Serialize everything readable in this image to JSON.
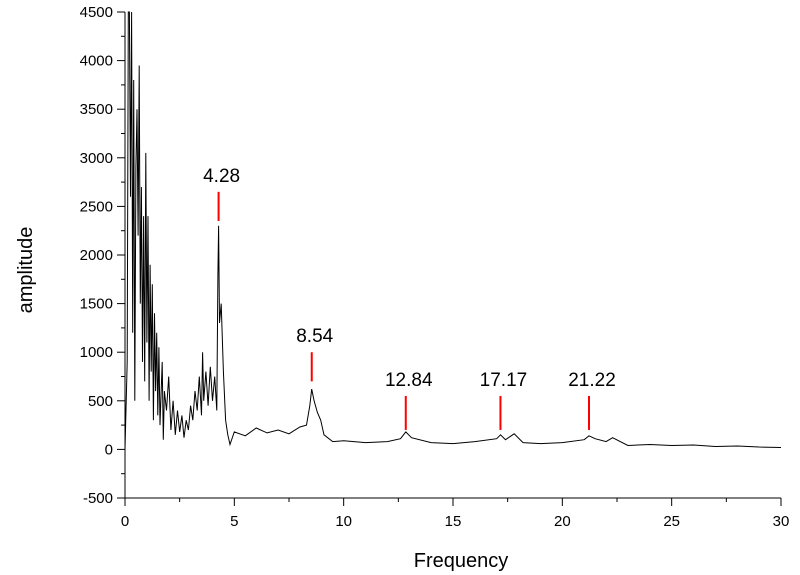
{
  "chart_data": {
    "type": "line",
    "xlabel": "Frequency",
    "ylabel": "amplitude",
    "xlim": [
      0,
      30
    ],
    "ylim": [
      -500,
      4500
    ],
    "x_ticks": [
      0,
      5,
      10,
      15,
      20,
      25,
      30
    ],
    "y_ticks": [
      -500,
      0,
      500,
      1000,
      1500,
      2000,
      2500,
      3000,
      3500,
      4000,
      4500
    ],
    "grid": false,
    "line_color": "#000000",
    "marker_color": "#ff0000",
    "series": [
      {
        "points": [
          [
            0.0,
            0
          ],
          [
            0.1,
            900
          ],
          [
            0.15,
            4500
          ],
          [
            0.2,
            4500
          ],
          [
            0.25,
            2600
          ],
          [
            0.3,
            4500
          ],
          [
            0.35,
            1200
          ],
          [
            0.4,
            3800
          ],
          [
            0.45,
            500
          ],
          [
            0.5,
            2900
          ],
          [
            0.55,
            3500
          ],
          [
            0.6,
            2200
          ],
          [
            0.65,
            3950
          ],
          [
            0.7,
            1500
          ],
          [
            0.75,
            2700
          ],
          [
            0.8,
            900
          ],
          [
            0.85,
            2400
          ],
          [
            0.9,
            700
          ],
          [
            0.95,
            3050
          ],
          [
            1.0,
            1100
          ],
          [
            1.05,
            2400
          ],
          [
            1.1,
            500
          ],
          [
            1.15,
            1900
          ],
          [
            1.2,
            800
          ],
          [
            1.25,
            1700
          ],
          [
            1.3,
            300
          ],
          [
            1.35,
            1400
          ],
          [
            1.4,
            600
          ],
          [
            1.45,
            1200
          ],
          [
            1.5,
            350
          ],
          [
            1.55,
            1050
          ],
          [
            1.6,
            250
          ],
          [
            1.7,
            900
          ],
          [
            1.75,
            100
          ],
          [
            1.8,
            600
          ],
          [
            1.9,
            400
          ],
          [
            2.0,
            750
          ],
          [
            2.1,
            200
          ],
          [
            2.2,
            500
          ],
          [
            2.3,
            150
          ],
          [
            2.4,
            400
          ],
          [
            2.5,
            180
          ],
          [
            2.6,
            350
          ],
          [
            2.7,
            120
          ],
          [
            2.8,
            300
          ],
          [
            2.9,
            200
          ],
          [
            3.0,
            450
          ],
          [
            3.1,
            300
          ],
          [
            3.2,
            600
          ],
          [
            3.3,
            400
          ],
          [
            3.4,
            750
          ],
          [
            3.5,
            350
          ],
          [
            3.55,
            1000
          ],
          [
            3.6,
            500
          ],
          [
            3.7,
            800
          ],
          [
            3.8,
            450
          ],
          [
            3.9,
            850
          ],
          [
            4.0,
            500
          ],
          [
            4.1,
            750
          ],
          [
            4.2,
            400
          ],
          [
            4.25,
            1800
          ],
          [
            4.28,
            2300
          ],
          [
            4.32,
            1300
          ],
          [
            4.4,
            1500
          ],
          [
            4.5,
            800
          ],
          [
            4.6,
            300
          ],
          [
            4.7,
            150
          ],
          [
            4.8,
            50
          ],
          [
            5.0,
            180
          ],
          [
            5.5,
            140
          ],
          [
            6.0,
            220
          ],
          [
            6.5,
            170
          ],
          [
            7.0,
            200
          ],
          [
            7.5,
            160
          ],
          [
            8.0,
            230
          ],
          [
            8.3,
            250
          ],
          [
            8.45,
            450
          ],
          [
            8.54,
            620
          ],
          [
            8.65,
            500
          ],
          [
            8.8,
            380
          ],
          [
            8.95,
            300
          ],
          [
            9.1,
            150
          ],
          [
            9.5,
            80
          ],
          [
            10.0,
            90
          ],
          [
            11.0,
            70
          ],
          [
            12.0,
            80
          ],
          [
            12.6,
            110
          ],
          [
            12.84,
            180
          ],
          [
            13.1,
            120
          ],
          [
            14.0,
            70
          ],
          [
            15.0,
            60
          ],
          [
            16.0,
            80
          ],
          [
            17.0,
            110
          ],
          [
            17.17,
            150
          ],
          [
            17.4,
            100
          ],
          [
            17.8,
            160
          ],
          [
            18.2,
            70
          ],
          [
            19.0,
            60
          ],
          [
            20.0,
            70
          ],
          [
            21.0,
            100
          ],
          [
            21.22,
            140
          ],
          [
            21.5,
            110
          ],
          [
            22.0,
            80
          ],
          [
            22.3,
            120
          ],
          [
            23.0,
            40
          ],
          [
            24.0,
            50
          ],
          [
            25.0,
            40
          ],
          [
            26.0,
            45
          ],
          [
            27.0,
            30
          ],
          [
            28.0,
            35
          ],
          [
            29.0,
            25
          ],
          [
            30.0,
            20
          ]
        ]
      }
    ],
    "annotations": [
      {
        "label": "4.28",
        "x": 4.28,
        "y_bottom": 2350,
        "y_top": 2650
      },
      {
        "label": "8.54",
        "x": 8.54,
        "y_bottom": 700,
        "y_top": 1000
      },
      {
        "label": "12.84",
        "x": 12.84,
        "y_bottom": 200,
        "y_top": 550
      },
      {
        "label": "17.17",
        "x": 17.17,
        "y_bottom": 200,
        "y_top": 550
      },
      {
        "label": "21.22",
        "x": 21.22,
        "y_bottom": 200,
        "y_top": 550
      }
    ]
  }
}
